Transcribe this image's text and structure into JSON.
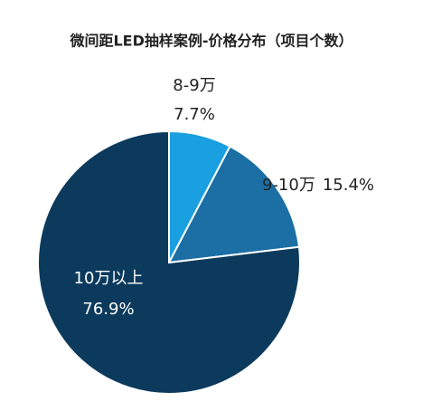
{
  "chart_data": {
    "type": "pie",
    "title": "微间距LED抽样案例-价格分布（项目个数）",
    "categories": [
      "8-9万",
      "9-10万",
      "10万以上"
    ],
    "values": [
      7.7,
      15.4,
      76.9
    ],
    "value_labels": [
      "7.7%",
      "15.4%",
      "76.9%"
    ],
    "colors": [
      "#1a9fe0",
      "#1b6fa5",
      "#0b3a5c"
    ]
  }
}
